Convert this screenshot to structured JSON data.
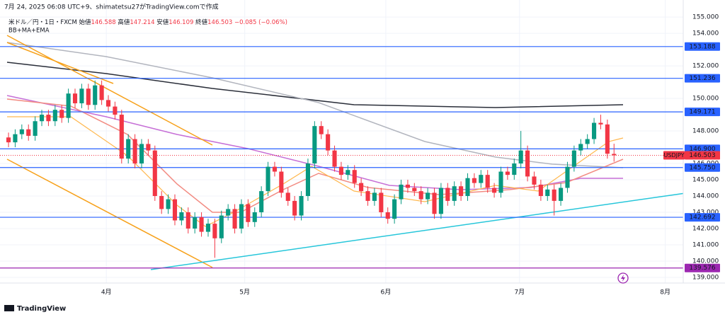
{
  "chart_data": {
    "type": "candlestick",
    "header": "7月 24, 2025 06:08 UTC+9、shimatetsu27がTradingView.comで作成",
    "symbol": "米ドル／円・1日・FXCM",
    "open_label": "始値",
    "high_label": "高値",
    "low_label": "安値",
    "close_label": "終値",
    "change_label": "−0.085 (−0.06%)",
    "indicators": "BB+MA+EMA",
    "ticker": "USDJPY",
    "brand": "TradingView",
    "up_color": "#089981",
    "down_color": "#f23645",
    "open": [
      147.6,
      147.3,
      147.8,
      148.1,
      147.7,
      148.6,
      149.0,
      148.6,
      149.3,
      148.8,
      150.3,
      149.7,
      150.6,
      149.6,
      150.8,
      149.9,
      149.5,
      149.0,
      146.3,
      147.5,
      146.0,
      147.2,
      146.8,
      144.0,
      143.2,
      143.8,
      142.5,
      143.0,
      142.0,
      142.7,
      141.8,
      142.3,
      141.4,
      142.8,
      143.2,
      142.0,
      143.5,
      142.4,
      143.0,
      144.3,
      145.8,
      145.5,
      144.2,
      143.7,
      142.8,
      144.0,
      146.0,
      148.3,
      147.8,
      146.8,
      145.8,
      145.3,
      145.6,
      144.8,
      144.3,
      143.7,
      144.2,
      143.0,
      142.6,
      143.8,
      144.7,
      144.5,
      144.3,
      143.8,
      144.2,
      142.9,
      144.5,
      143.7,
      144.6,
      144.0,
      145.1,
      144.8,
      145.3,
      144.5,
      144.2,
      145.5,
      145.3,
      146.0,
      146.8,
      145.2,
      144.7,
      144.0,
      144.4,
      143.7,
      144.5,
      145.8,
      146.8,
      147.2,
      147.5,
      148.5,
      148.4,
      146.588
    ],
    "high": [
      147.9,
      148.1,
      148.4,
      148.4,
      148.9,
      149.3,
      149.3,
      149.6,
      149.6,
      150.6,
      150.6,
      150.9,
      150.9,
      151.1,
      151.1,
      150.2,
      149.8,
      149.3,
      147.8,
      147.8,
      147.5,
      147.5,
      147.1,
      144.3,
      144.1,
      144.1,
      143.3,
      143.3,
      143.0,
      143.0,
      142.6,
      142.6,
      143.1,
      143.5,
      143.5,
      143.8,
      143.8,
      143.3,
      144.6,
      146.1,
      146.1,
      145.8,
      144.5,
      144.0,
      144.3,
      146.3,
      148.6,
      148.6,
      148.1,
      147.1,
      146.1,
      145.9,
      145.9,
      145.1,
      144.6,
      144.5,
      144.5,
      143.3,
      144.1,
      145.0,
      145.0,
      144.8,
      144.6,
      144.5,
      144.5,
      144.8,
      144.8,
      144.9,
      144.9,
      145.4,
      145.4,
      145.6,
      145.6,
      144.8,
      145.8,
      145.8,
      146.3,
      148.0,
      147.1,
      145.5,
      145.0,
      144.7,
      144.7,
      144.8,
      146.1,
      147.1,
      147.5,
      147.8,
      148.8,
      149.0,
      148.7,
      147.214
    ],
    "low": [
      147.0,
      147.0,
      147.5,
      147.4,
      147.4,
      148.3,
      148.3,
      148.3,
      148.5,
      148.5,
      149.4,
      149.4,
      149.3,
      149.3,
      149.6,
      149.2,
      148.7,
      146.0,
      146.0,
      145.7,
      145.7,
      146.5,
      143.7,
      142.9,
      142.9,
      142.2,
      142.2,
      141.7,
      141.7,
      141.5,
      141.5,
      140.2,
      141.1,
      142.5,
      141.7,
      141.7,
      142.1,
      142.1,
      142.7,
      144.0,
      145.2,
      143.9,
      143.4,
      142.5,
      142.5,
      143.7,
      145.7,
      147.5,
      146.5,
      145.5,
      145.0,
      145.0,
      144.5,
      144.0,
      143.4,
      143.4,
      142.7,
      142.3,
      142.3,
      143.5,
      144.2,
      144.0,
      143.5,
      143.5,
      142.6,
      142.6,
      143.4,
      143.4,
      143.7,
      143.7,
      144.5,
      144.5,
      144.2,
      143.9,
      143.9,
      145.0,
      145.0,
      145.7,
      144.9,
      144.4,
      143.7,
      143.7,
      142.8,
      143.4,
      144.2,
      145.5,
      146.5,
      146.9,
      147.2,
      148.1,
      146.3,
      146.109
    ],
    "close": [
      147.3,
      147.8,
      148.1,
      147.7,
      148.6,
      149.0,
      148.6,
      149.3,
      148.8,
      150.3,
      149.7,
      150.6,
      149.6,
      150.8,
      149.9,
      149.5,
      149.0,
      146.3,
      147.5,
      146.0,
      147.2,
      146.8,
      144.0,
      143.2,
      143.8,
      142.5,
      143.0,
      142.0,
      142.7,
      141.8,
      142.3,
      141.4,
      142.8,
      143.2,
      142.0,
      143.5,
      142.4,
      143.0,
      144.3,
      145.8,
      145.5,
      144.2,
      143.7,
      142.8,
      144.0,
      146.0,
      148.3,
      147.8,
      146.8,
      145.8,
      145.3,
      145.6,
      144.8,
      144.3,
      143.7,
      144.2,
      143.0,
      142.6,
      143.8,
      144.7,
      144.5,
      144.3,
      143.8,
      144.2,
      142.9,
      144.5,
      143.7,
      144.6,
      144.0,
      145.1,
      144.8,
      145.3,
      144.5,
      144.2,
      145.5,
      145.3,
      146.0,
      146.8,
      145.2,
      144.7,
      144.0,
      144.4,
      143.7,
      144.5,
      145.8,
      146.8,
      147.2,
      147.5,
      148.5,
      148.4,
      146.6,
      146.503
    ],
    "xlim": [
      -1.28,
      101.4
    ],
    "xticks": [
      {
        "value": 14.7,
        "label": "4月"
      },
      {
        "value": 35.5,
        "label": "5月"
      },
      {
        "value": 56.7,
        "label": "6月"
      },
      {
        "value": 76.8,
        "label": "7月"
      },
      {
        "value": 98.7,
        "label": "8月"
      }
    ],
    "ylim": [
      138.65,
      156.05
    ],
    "yticks": [
      {
        "value": 155,
        "label": "155.000"
      },
      {
        "value": 154,
        "label": "154.000"
      },
      {
        "value": 152,
        "label": "152.000"
      },
      {
        "value": 150,
        "label": "150.000"
      },
      {
        "value": 148,
        "label": "148.000"
      },
      {
        "value": 146,
        "label": "146.000"
      },
      {
        "value": 145,
        "label": "145.000"
      },
      {
        "value": 144,
        "label": "144.000"
      },
      {
        "value": 143,
        "label": "143.000"
      },
      {
        "value": 142,
        "label": "142.000"
      },
      {
        "value": 141,
        "label": "141.000"
      },
      {
        "value": 140,
        "label": "140.000"
      },
      {
        "value": 139,
        "label": "139.000"
      }
    ],
    "levels": [
      {
        "value": 153.188,
        "label": "153.188",
        "color": "#2962ff"
      },
      {
        "value": 151.236,
        "label": "151.236",
        "color": "#2962ff"
      },
      {
        "value": 149.171,
        "label": "149.171",
        "color": "#2962ff"
      },
      {
        "value": 146.9,
        "label": "146.900",
        "color": "#2962ff"
      },
      {
        "value": 145.75,
        "label": "145.750",
        "color": "#2962ff"
      },
      {
        "value": 142.692,
        "label": "142.692",
        "color": "#2962ff"
      },
      {
        "value": 139.576,
        "label": "139.576",
        "color": "#9c27b0"
      }
    ]
  }
}
